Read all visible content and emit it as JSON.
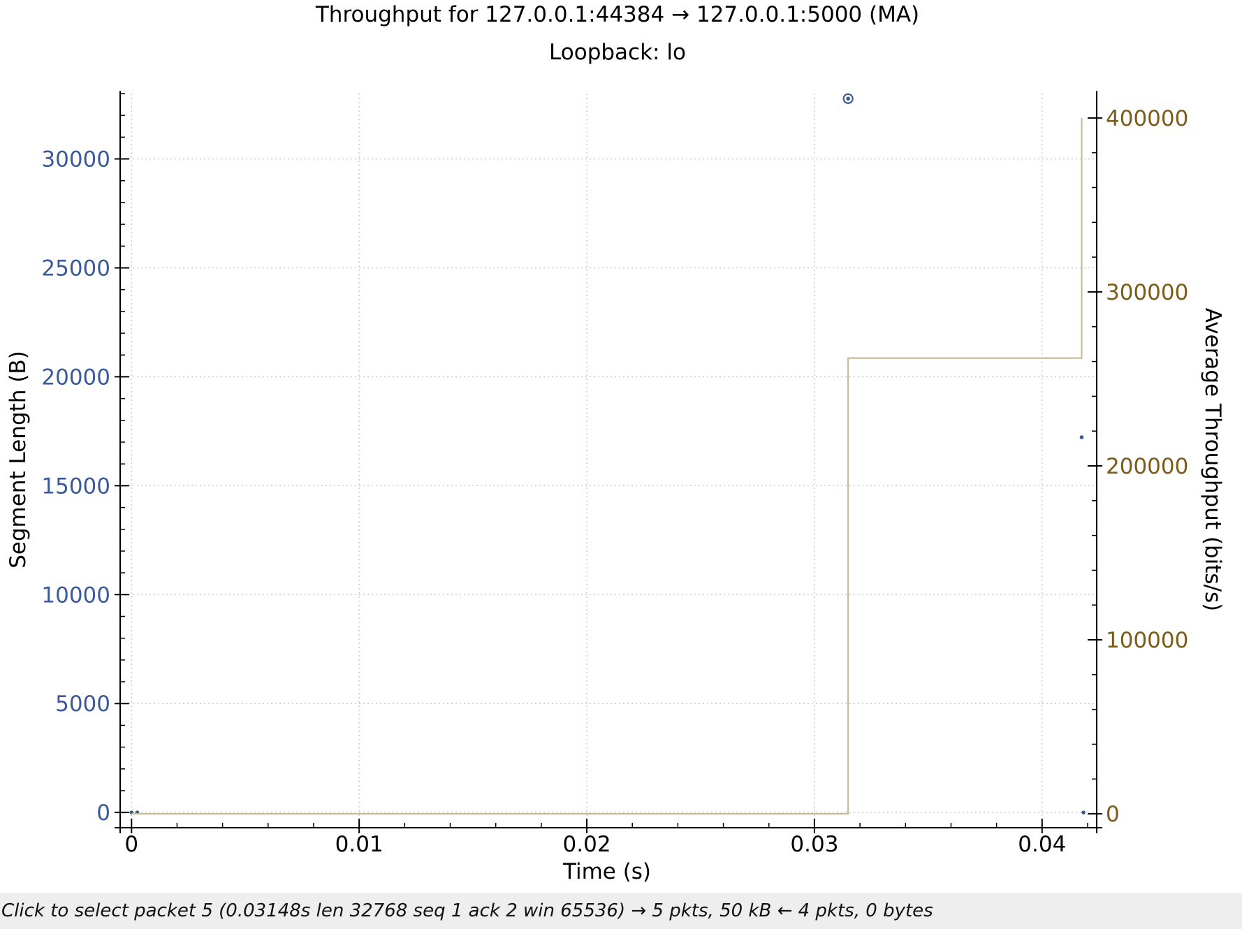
{
  "chart_data": {
    "type": "scatter",
    "title": "Throughput for 127.0.0.1:44384 → 127.0.0.1:5000 (MA)",
    "subtitle": "Loopback: lo",
    "xlabel": "Time (s)",
    "ylabel_left": "Segment Length (B)",
    "ylabel_right": "Average Throughput (bits/s)",
    "xlim": [
      -0.0005,
      0.0424
    ],
    "ylim_left": [
      -700,
      33000
    ],
    "ylim_right": [
      -8000,
      414000
    ],
    "x_ticks": [
      0,
      0.01,
      0.02,
      0.03,
      0.04
    ],
    "x_tick_labels": [
      "0",
      "0.01",
      "0.02",
      "0.03",
      "0.04"
    ],
    "y_left_ticks": [
      0,
      5000,
      10000,
      15000,
      20000,
      25000,
      30000
    ],
    "y_left_tick_labels": [
      "0",
      "5000",
      "10000",
      "15000",
      "20000",
      "25000",
      "30000"
    ],
    "y_right_ticks": [
      0,
      100000,
      200000,
      300000,
      400000
    ],
    "y_right_tick_labels": [
      "0",
      "100000",
      "200000",
      "300000",
      "400000"
    ],
    "grid": true,
    "colors": {
      "segment": "#3b5a9a",
      "throughput": "#c8bc9c",
      "left_axis_text": "#3b5a9a",
      "right_axis_text": "#7a5c18",
      "grid": "#cccccc"
    },
    "series": [
      {
        "name": "Segment Length",
        "axis": "left",
        "kind": "scatter",
        "points": [
          {
            "x": 0.0,
            "y": 0
          },
          {
            "x": 0.00025,
            "y": 0
          },
          {
            "x": 0.03148,
            "y": 32768,
            "selected": true
          },
          {
            "x": 0.04174,
            "y": 17224
          },
          {
            "x": 0.04182,
            "y": 0
          }
        ]
      },
      {
        "name": "Average Throughput",
        "axis": "right",
        "kind": "step",
        "points": [
          {
            "x": 0.0,
            "y": 0
          },
          {
            "x": 0.03148,
            "y": 0
          },
          {
            "x": 0.03148,
            "y": 262000
          },
          {
            "x": 0.04174,
            "y": 262000
          },
          {
            "x": 0.04174,
            "y": 400000
          }
        ]
      }
    ]
  },
  "status": {
    "text": "Click to select packet 5 (0.03148s len 32768 seq 1 ack 2 win 65536) → 5 pkts, 50 kB ← 4 pkts, 0 bytes"
  }
}
